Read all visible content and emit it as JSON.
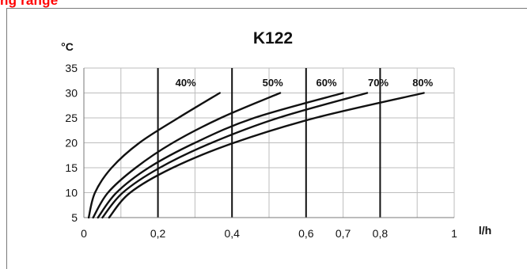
{
  "header_fragment": "ng range",
  "colors": {
    "header": "#ff0000",
    "grid": "#bdbdbd",
    "axis_frame": "#7a7a7a",
    "marker_lines": "#111111",
    "curves": "#111111"
  },
  "chart_data": {
    "type": "line",
    "title": "K122",
    "xlabel": "l/h",
    "ylabel": "°C",
    "xlim": [
      0,
      1
    ],
    "ylim": [
      5,
      35
    ],
    "grid": true,
    "x_ticks": [
      {
        "value": 0,
        "label": "0"
      },
      {
        "value": 0.2,
        "label": "0,2"
      },
      {
        "value": 0.4,
        "label": "0,4"
      },
      {
        "value": 0.6,
        "label": "0,6"
      },
      {
        "value": 0.7,
        "label": "0,7"
      },
      {
        "value": 0.8,
        "label": "0,8"
      },
      {
        "value": 1,
        "label": "1"
      }
    ],
    "y_ticks": [
      {
        "value": 5,
        "label": "5"
      },
      {
        "value": 10,
        "label": "10"
      },
      {
        "value": 15,
        "label": "15"
      },
      {
        "value": 20,
        "label": "20"
      },
      {
        "value": 25,
        "label": "25"
      },
      {
        "value": 30,
        "label": "30"
      },
      {
        "value": 35,
        "label": "35"
      }
    ],
    "x_grid": [
      0.1,
      0.2,
      0.3,
      0.4,
      0.5,
      0.6,
      0.7,
      0.8,
      0.9,
      1.0
    ],
    "marker_lines": [
      0.2,
      0.4,
      0.6,
      0.8
    ],
    "series": [
      {
        "name": "40%",
        "points": [
          [
            0.013,
            5
          ],
          [
            0.03,
            10
          ],
          [
            0.075,
            15
          ],
          [
            0.15,
            20
          ],
          [
            0.255,
            25
          ],
          [
            0.367,
            30
          ]
        ]
      },
      {
        "name": "50%",
        "points": [
          [
            0.025,
            5
          ],
          [
            0.065,
            10
          ],
          [
            0.14,
            15
          ],
          [
            0.24,
            20
          ],
          [
            0.37,
            25
          ],
          [
            0.53,
            30
          ]
        ]
      },
      {
        "name": "60%",
        "points": [
          [
            0.038,
            5
          ],
          [
            0.088,
            10
          ],
          [
            0.175,
            15
          ],
          [
            0.3,
            20
          ],
          [
            0.46,
            25
          ],
          [
            0.7,
            30
          ]
        ]
      },
      {
        "name": "70%",
        "points": [
          [
            0.05,
            5
          ],
          [
            0.105,
            10
          ],
          [
            0.205,
            15
          ],
          [
            0.345,
            20
          ],
          [
            0.525,
            25
          ],
          [
            0.765,
            30
          ]
        ]
      },
      {
        "name": "80%",
        "points": [
          [
            0.068,
            5
          ],
          [
            0.125,
            10
          ],
          [
            0.24,
            15
          ],
          [
            0.405,
            20
          ],
          [
            0.625,
            25
          ],
          [
            0.918,
            30
          ]
        ]
      }
    ],
    "series_labels": [
      {
        "series": "40%",
        "x": 0.275,
        "y": 32
      },
      {
        "series": "50%",
        "x": 0.51,
        "y": 32
      },
      {
        "series": "60%",
        "x": 0.655,
        "y": 32
      },
      {
        "series": "70%",
        "x": 0.795,
        "y": 32
      },
      {
        "series": "80%",
        "x": 0.915,
        "y": 32
      }
    ]
  }
}
